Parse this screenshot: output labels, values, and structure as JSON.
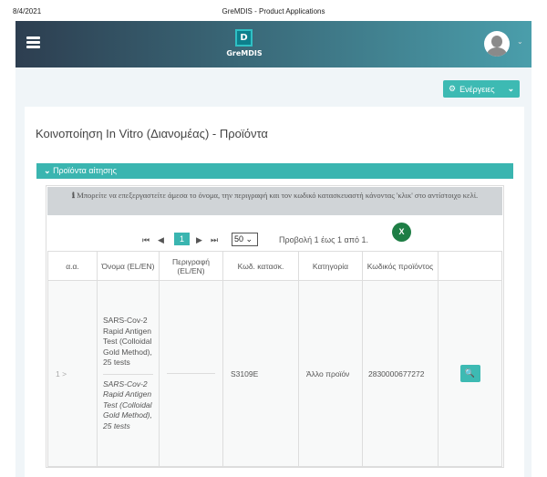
{
  "print_header": {
    "date": "8/4/2021",
    "title": "GreMDIS - Product Applications"
  },
  "navbar": {
    "logo_letter": "D",
    "brand": "GreMDIS"
  },
  "actions_label": "Ενέργειες",
  "page_title": "Κοινοποίηση In Vitro (Διανομέας) - Προϊόντα",
  "section_title": "Προϊόντα αίτησης",
  "info_text": "Μπορείτε να επεξεργαστείτε άμεσα το όνομα, την περιγραφή και τον κωδικό κατασκευαστή κάνοντας 'κλικ' στο αντίστοιχο κελί.",
  "pager": {
    "current_page": "1",
    "page_size": "50",
    "summary": "Προβολή 1 έως 1 από 1."
  },
  "table": {
    "headers": [
      "α.α.",
      "Όνομα (EL/EN)",
      "Περιγραφή (EL/EN)",
      "Κωδ. κατασκ.",
      "Κατηγορία",
      "Κωδικός προϊόντος",
      ""
    ],
    "rows": [
      {
        "index": "1 >",
        "name_el": "SARS-Cov-2 Rapid Antigen Test (Colloidal Gold Method), 25 tests",
        "name_en": "SARS-Cov-2 Rapid Antigen Test (Colloidal Gold Method), 25 tests",
        "description": "",
        "manufacturer_code": "S3109E",
        "category": "Άλλο προϊόν",
        "product_code": "2830000677272"
      }
    ]
  },
  "colors": {
    "accent": "#3ab5b0",
    "excel": "#1e7e45"
  }
}
